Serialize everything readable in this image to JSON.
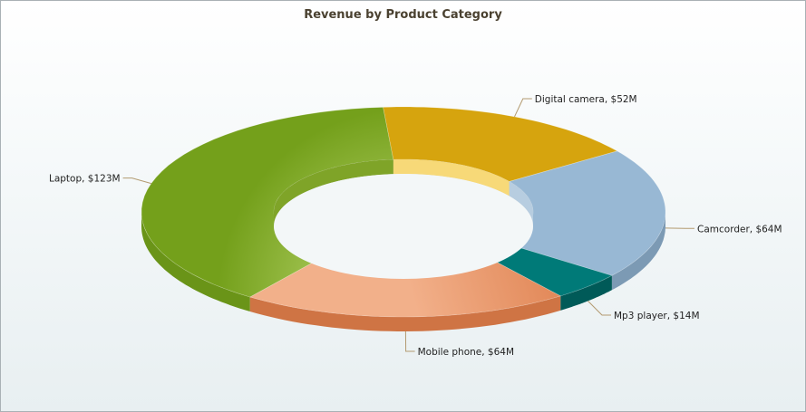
{
  "chart_data": {
    "type": "pie",
    "variant": "doughnut-3d",
    "title": "Revenue by Product Category",
    "categories": [
      "Camcorder",
      "Mp3 player",
      "Mobile phone",
      "Laptop",
      "Digital camera"
    ],
    "values": [
      64,
      14,
      64,
      123,
      52
    ],
    "unit": "$M",
    "labels": [
      "Camcorder, $64M",
      "Mp3 player, $14M",
      "Mobile phone, $64M",
      "Laptop, $123M",
      "Digital camera, $52M"
    ],
    "colors": [
      "#98b8d4",
      "#007a78",
      "#e98a58",
      "#8cb83a",
      "#d9a514"
    ],
    "legend": "none"
  }
}
